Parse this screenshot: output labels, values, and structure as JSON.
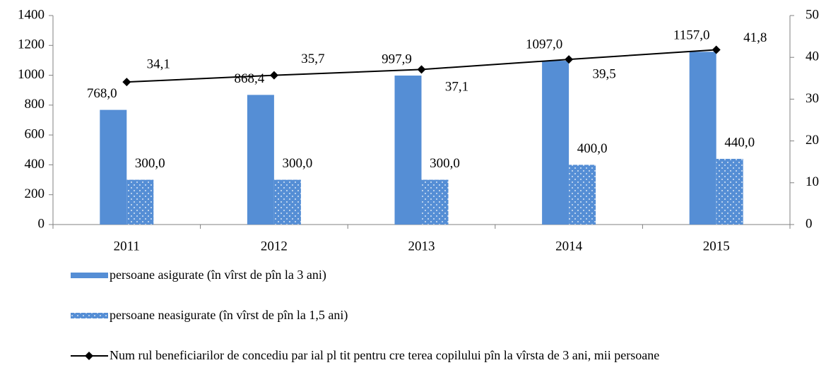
{
  "chart_data": {
    "type": "bar",
    "categories": [
      "2011",
      "2012",
      "2013",
      "2014",
      "2015"
    ],
    "ylim": [
      0,
      1400
    ],
    "yticks": [
      0,
      200,
      400,
      600,
      800,
      1000,
      1200,
      1400
    ],
    "y2lim": [
      0,
      50
    ],
    "y2ticks": [
      0,
      10,
      20,
      30,
      40,
      50
    ],
    "series": [
      {
        "name": "persoane asigurate (în vîrst  de pîn  la 3 ani)",
        "type": "bar",
        "color": "#558ed5",
        "values": [
          768.0,
          868.4,
          997.9,
          1097.0,
          1157.0
        ],
        "value_labels": [
          "768,0",
          "868,4",
          "997,9",
          "1097,0",
          "1157,0"
        ]
      },
      {
        "name": "persoane neasigurate (în vîrst  de pîn  la 1,5 ani)",
        "type": "bar",
        "color": "#558ed5",
        "pattern": "dots",
        "values": [
          300.0,
          300.0,
          300.0,
          400.0,
          440.0
        ],
        "value_labels": [
          "300,0",
          "300,0",
          "300,0",
          "400,0",
          "440,0"
        ]
      },
      {
        "name": "Num rul beneficiarilor de concediu par ial pl tit pentru cre terea copilului pîn  la vîrsta de 3 ani, mii persoane",
        "type": "line",
        "axis": "y2",
        "color": "#000000",
        "values": [
          34.1,
          35.7,
          37.1,
          39.5,
          41.8
        ],
        "value_labels": [
          "34,1",
          "35,7",
          "37,1",
          "39,5",
          "41,8"
        ]
      }
    ]
  }
}
